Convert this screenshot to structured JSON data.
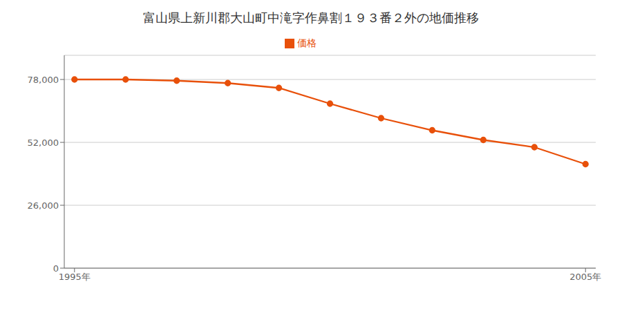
{
  "chart_data": {
    "type": "line",
    "title": "富山県上新川郡大山町中滝字作鼻割１９３番２外の地価推移",
    "x": [
      1995,
      1996,
      1997,
      1998,
      1999,
      2000,
      2001,
      2002,
      2003,
      2004,
      2005
    ],
    "series": [
      {
        "name": "価格",
        "color": "#E8500A",
        "marker": "circle",
        "values": [
          78000,
          78000,
          77500,
          76500,
          74500,
          68000,
          62000,
          57000,
          53000,
          50000,
          43000
        ]
      }
    ],
    "xlim": [
      1994.8,
      2005.2
    ],
    "xticks": [
      {
        "value": 1995,
        "label": "1995年"
      },
      {
        "value": 2005,
        "label": "2005年"
      }
    ],
    "ylim": [
      0,
      88000
    ],
    "yticks": [
      0,
      {
        "value": 26000,
        "label": "26,000"
      },
      {
        "value": 52000,
        "label": "52,000"
      },
      {
        "value": 78000,
        "label": "78,000"
      }
    ],
    "grid": true,
    "legend": "top"
  }
}
